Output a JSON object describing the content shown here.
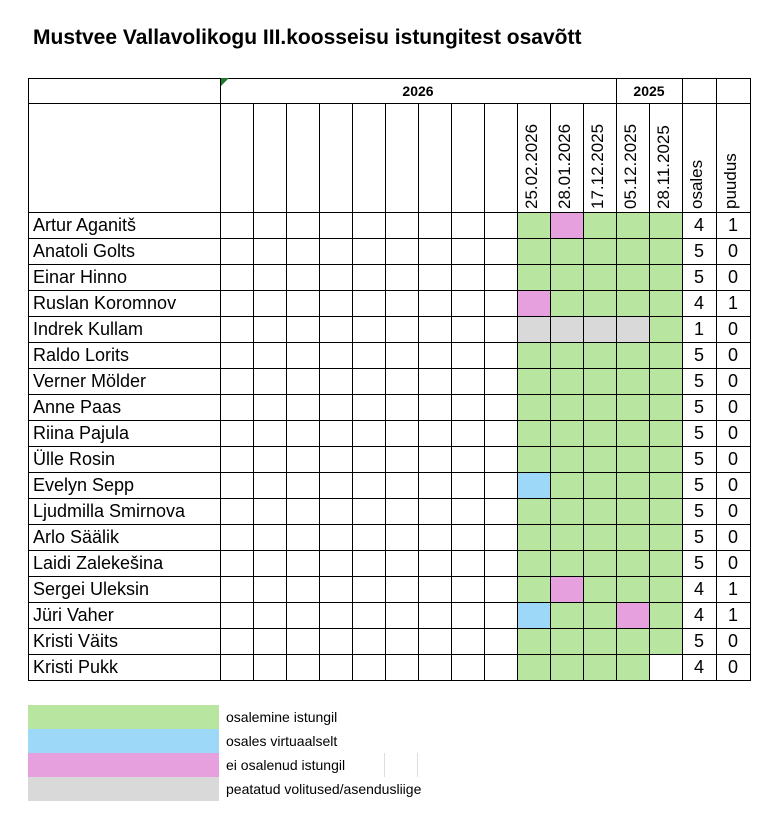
{
  "title": "Mustvee Vallavolikogu III.koosseisu istungitest osavõtt",
  "years": {
    "y2026": "2026",
    "y2025": "2025"
  },
  "dates": [
    "25.02.2026",
    "28.01.2026",
    "17.12.2025",
    "05.12.2025",
    "28.11.2025"
  ],
  "summary_headers": {
    "present": "osales",
    "absent": "puudus"
  },
  "colors": {
    "attended": "#b8e6a0",
    "virtual": "#9ed8f8",
    "absent": "#e6a0de",
    "suspended": "#d9d9d9",
    "none": "#ffffff"
  },
  "rows": [
    {
      "name": "Artur Aganitš",
      "status": [
        "attended",
        "absent",
        "attended",
        "attended",
        "attended"
      ],
      "present": "4",
      "absent": "1"
    },
    {
      "name": "Anatoli Golts",
      "status": [
        "attended",
        "attended",
        "attended",
        "attended",
        "attended"
      ],
      "present": "5",
      "absent": "0"
    },
    {
      "name": "Einar Hinno",
      "status": [
        "attended",
        "attended",
        "attended",
        "attended",
        "attended"
      ],
      "present": "5",
      "absent": "0"
    },
    {
      "name": "Ruslan Koromnov",
      "status": [
        "absent",
        "attended",
        "attended",
        "attended",
        "attended"
      ],
      "present": "4",
      "absent": "1"
    },
    {
      "name": "Indrek Kullam",
      "status": [
        "suspended",
        "suspended",
        "suspended",
        "suspended",
        "attended"
      ],
      "present": "1",
      "absent": "0"
    },
    {
      "name": "Raldo Lorits",
      "status": [
        "attended",
        "attended",
        "attended",
        "attended",
        "attended"
      ],
      "present": "5",
      "absent": "0"
    },
    {
      "name": "Verner Mölder",
      "status": [
        "attended",
        "attended",
        "attended",
        "attended",
        "attended"
      ],
      "present": "5",
      "absent": "0"
    },
    {
      "name": "Anne Paas",
      "status": [
        "attended",
        "attended",
        "attended",
        "attended",
        "attended"
      ],
      "present": "5",
      "absent": "0"
    },
    {
      "name": "Riina Pajula",
      "status": [
        "attended",
        "attended",
        "attended",
        "attended",
        "attended"
      ],
      "present": "5",
      "absent": "0"
    },
    {
      "name": "Ülle Rosin",
      "status": [
        "attended",
        "attended",
        "attended",
        "attended",
        "attended"
      ],
      "present": "5",
      "absent": "0"
    },
    {
      "name": "Evelyn Sepp",
      "status": [
        "virtual",
        "attended",
        "attended",
        "attended",
        "attended"
      ],
      "present": "5",
      "absent": "0"
    },
    {
      "name": "Ljudmilla Smirnova",
      "status": [
        "attended",
        "attended",
        "attended",
        "attended",
        "attended"
      ],
      "present": "5",
      "absent": "0"
    },
    {
      "name": "Arlo Säälik",
      "status": [
        "attended",
        "attended",
        "attended",
        "attended",
        "attended"
      ],
      "present": "5",
      "absent": "0"
    },
    {
      "name": "Laidi Zalekešina",
      "status": [
        "attended",
        "attended",
        "attended",
        "attended",
        "attended"
      ],
      "present": "5",
      "absent": "0"
    },
    {
      "name": "Sergei Uleksin",
      "status": [
        "attended",
        "absent",
        "attended",
        "attended",
        "attended"
      ],
      "present": "4",
      "absent": "1"
    },
    {
      "name": "Jüri Vaher",
      "status": [
        "virtual",
        "attended",
        "attended",
        "absent",
        "attended"
      ],
      "present": "4",
      "absent": "1"
    },
    {
      "name": "Kristi Väits",
      "status": [
        "attended",
        "attended",
        "attended",
        "attended",
        "attended"
      ],
      "present": "5",
      "absent": "0"
    },
    {
      "name": "Kristi Pukk",
      "status": [
        "attended",
        "attended",
        "attended",
        "attended",
        "none"
      ],
      "present": "4",
      "absent": "0"
    }
  ],
  "legend": [
    {
      "key": "attended",
      "label": "osalemine istungil"
    },
    {
      "key": "virtual",
      "label": "osales virtuaalselt"
    },
    {
      "key": "absent",
      "label": "ei osalenud istungil"
    },
    {
      "key": "suspended",
      "label": "peatatud volitused/asendusliige"
    }
  ]
}
